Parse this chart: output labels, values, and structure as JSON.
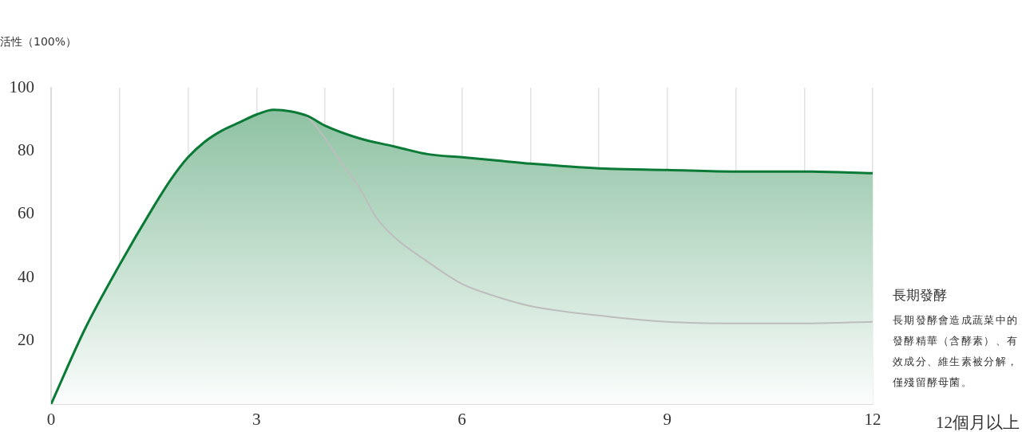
{
  "chart_data": {
    "type": "area",
    "ylabel": "活性（100%）",
    "xlabel": "12個月以上",
    "annotations": [
      "長期發酵",
      "長期發酵會造成蔬菜中的發酵精華（含酵素）、有效成分、維生素被分解，僅殘留酵母菌。"
    ],
    "series": [
      {
        "type": "line",
        "color": "#bdbdbd",
        "x": [
          3.5,
          3.75,
          4,
          4.25,
          4.5,
          4.75,
          5,
          5.5,
          6,
          6.5,
          7,
          8,
          9,
          10,
          11,
          12
        ],
        "values": [
          92.5,
          90.5,
          84,
          76,
          68.5,
          59,
          53,
          45,
          38,
          34,
          31,
          28,
          26,
          25.5,
          25.5,
          26
        ]
      },
      {
        "color": "#0a7a36",
        "x": [
          0,
          0.5,
          1,
          1.5,
          1.75,
          2,
          2.25,
          2.5,
          2.75,
          3,
          3.25,
          3.5,
          3.75,
          4,
          4.5,
          5,
          5.5,
          6,
          6.5,
          7,
          8,
          9,
          10,
          11,
          12
        ],
        "values": [
          0,
          24,
          44,
          62.5,
          71,
          78,
          83,
          86.5,
          89,
          91.5,
          93,
          92.5,
          91,
          88,
          84,
          81.5,
          79,
          78,
          77,
          76,
          74.5,
          74,
          73.5,
          73.5,
          73
        ]
      }
    ],
    "xlim": [
      0,
      12
    ],
    "xticks": [
      0,
      {
        "value": 1,
        "label": null
      },
      {
        "value": 2,
        "label": null
      },
      3,
      {
        "value": 4,
        "label": null
      },
      {
        "value": 5,
        "label": null
      },
      6,
      {
        "value": 7,
        "label": null
      },
      {
        "value": 8,
        "label": null
      },
      9,
      {
        "value": 10,
        "label": null
      },
      {
        "value": 11,
        "label": null
      },
      12
    ],
    "ylim": [
      0,
      100
    ],
    "yticks": [
      20,
      40,
      60,
      80,
      100
    ],
    "grid": "x",
    "marker": "none",
    "line_style": "solid"
  }
}
